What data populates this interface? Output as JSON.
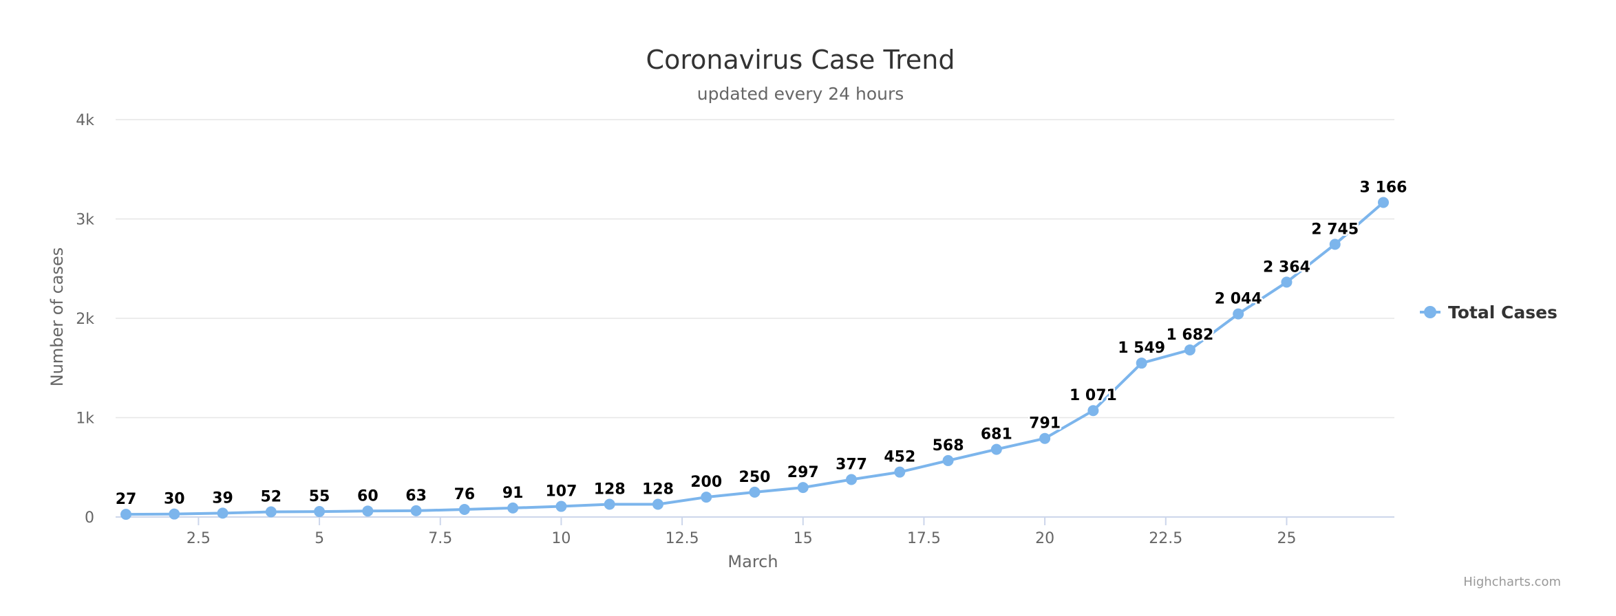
{
  "chart_data": {
    "type": "line",
    "title": "Coronavirus Case Trend",
    "subtitle": "updated every 24 hours",
    "xlabel": "March",
    "ylabel": "Number of cases",
    "xlim": [
      1,
      27
    ],
    "ylim": [
      0,
      4000
    ],
    "x_ticks": [
      2.5,
      5,
      7.5,
      10,
      12.5,
      15,
      17.5,
      20,
      22.5,
      25
    ],
    "x_tick_labels": [
      "2.5",
      "5",
      "7.5",
      "10",
      "12.5",
      "15",
      "17.5",
      "20",
      "22.5",
      "25"
    ],
    "y_ticks": [
      0,
      1000,
      2000,
      3000,
      4000
    ],
    "y_tick_labels": [
      "0",
      "1k",
      "2k",
      "3k",
      "4k"
    ],
    "grid": true,
    "legend_position": "right",
    "series": [
      {
        "name": "Total Cases",
        "color": "#7cb5ec",
        "x": [
          1,
          2,
          3,
          4,
          5,
          6,
          7,
          8,
          9,
          10,
          11,
          12,
          13,
          14,
          15,
          16,
          17,
          18,
          19,
          20,
          21,
          22,
          23,
          24,
          25,
          26,
          27
        ],
        "values": [
          27,
          30,
          39,
          52,
          55,
          60,
          63,
          76,
          91,
          107,
          128,
          128,
          200,
          250,
          297,
          377,
          452,
          568,
          681,
          791,
          1071,
          1549,
          1682,
          2044,
          2364,
          2745,
          3166
        ],
        "labels": [
          "27",
          "30",
          "39",
          "52",
          "55",
          "60",
          "63",
          "76",
          "91",
          "107",
          "128",
          "128",
          "200",
          "250",
          "297",
          "377",
          "452",
          "568",
          "681",
          "791",
          "1 071",
          "1 549",
          "1 682",
          "2 044",
          "2 364",
          "2 745",
          "3 166"
        ]
      }
    ]
  },
  "credits": "Highcharts.com"
}
